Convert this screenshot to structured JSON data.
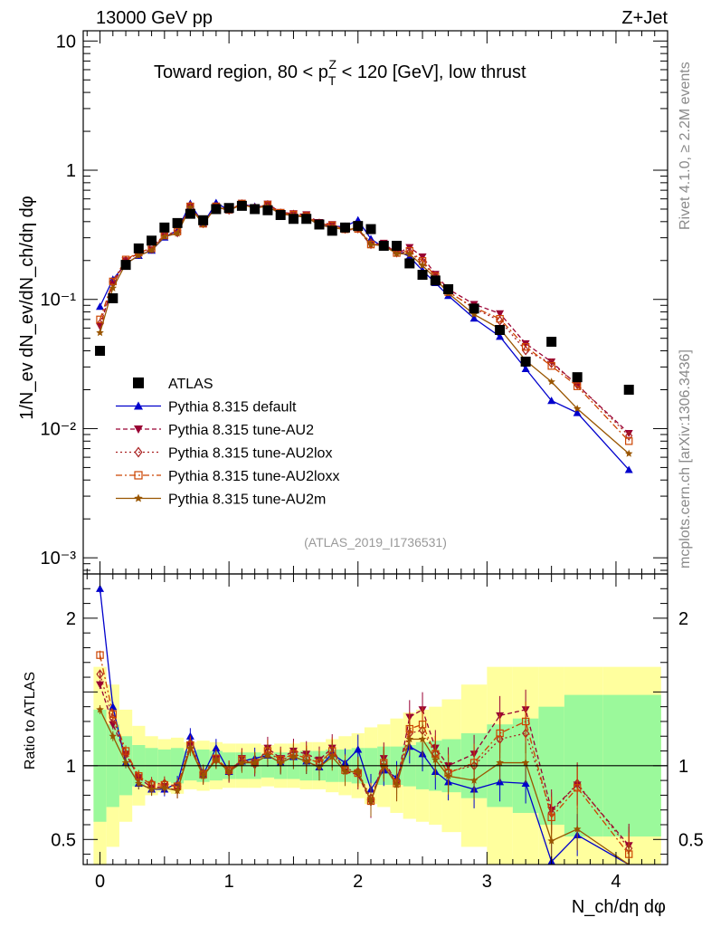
{
  "chart_data": {
    "type": "line",
    "header_left": "13000 GeV pp",
    "header_right": "Z+Jet",
    "title": {
      "main": "Toward region, 80 < p",
      "sub": "T",
      "sup": "Z",
      "rest": " < 120 [GeV], low thrust"
    },
    "ylabel_main": "1/N_ev dN_ev/dN_ch/dη dφ",
    "ylabel_ratio": "Ratio to ATLAS",
    "xlabel": "N_ch/dη dφ",
    "analysis_id": "(ATLAS_2019_I1736531)",
    "side_top": "Rivet 4.1.0, ≥ 2.2M events",
    "side_bottom": "mcplots.cern.ch [arXiv:1306.3436]",
    "xlim": [
      -0.13,
      4.4
    ],
    "ylim_main": [
      0.00075,
      12
    ],
    "ylim_ratio": [
      0.33,
      2.3
    ],
    "x_ticks": [
      "0",
      "1",
      "2",
      "3",
      "4"
    ],
    "y_ticks_main": [
      "10⁻³",
      "10⁻²",
      "10⁻¹",
      "1",
      "10"
    ],
    "y_ticks_ratio": [
      "0.5",
      "1",
      "2"
    ],
    "x": [
      0.0,
      0.1,
      0.2,
      0.3,
      0.4,
      0.5,
      0.6,
      0.7,
      0.8,
      0.9,
      1.0,
      1.1,
      1.2,
      1.3,
      1.4,
      1.5,
      1.6,
      1.7,
      1.8,
      1.9,
      2.0,
      2.1,
      2.2,
      2.3,
      2.4,
      2.5,
      2.6,
      2.7,
      2.9,
      3.1,
      3.3,
      3.5,
      3.7,
      4.1
    ],
    "data": {
      "name": "ATLAS",
      "values": [
        0.04,
        0.102,
        0.185,
        0.248,
        0.285,
        0.36,
        0.39,
        0.46,
        0.41,
        0.5,
        0.51,
        0.53,
        0.5,
        0.49,
        0.45,
        0.42,
        0.42,
        0.38,
        0.34,
        0.36,
        0.37,
        0.35,
        0.26,
        0.26,
        0.19,
        0.155,
        0.14,
        0.12,
        0.085,
        0.058,
        0.033,
        0.047,
        0.025,
        0.02
      ],
      "ratio_band_inner": [
        0.62,
        0.72,
        0.8,
        0.86,
        0.88,
        0.89,
        0.88,
        0.9,
        0.89,
        0.9,
        0.91,
        0.91,
        0.91,
        0.92,
        0.91,
        0.91,
        0.9,
        0.9,
        0.89,
        0.89,
        0.88,
        0.88,
        0.87,
        0.87,
        0.86,
        0.84,
        0.83,
        0.82,
        0.78,
        0.72,
        0.68,
        0.6,
        0.52,
        0.52
      ],
      "ratio_band_outer": [
        0.33,
        0.45,
        0.62,
        0.73,
        0.8,
        0.82,
        0.81,
        0.84,
        0.83,
        0.84,
        0.85,
        0.85,
        0.85,
        0.86,
        0.85,
        0.85,
        0.84,
        0.84,
        0.82,
        0.8,
        0.78,
        0.74,
        0.72,
        0.68,
        0.64,
        0.62,
        0.6,
        0.55,
        0.45,
        0.33,
        0.33,
        0.33,
        0.33,
        0.33
      ]
    },
    "series": [
      {
        "name": "Pythia 8.315 default",
        "color": "#0000cc",
        "dash": "",
        "marker": "triangle-up",
        "ratio": [
          2.2,
          1.4,
          1.02,
          0.88,
          0.84,
          0.84,
          0.88,
          1.2,
          0.94,
          1.12,
          0.96,
          1.03,
          1.05,
          1.07,
          1.02,
          1.06,
          1.03,
          0.99,
          1.08,
          1.02,
          1.11,
          0.84,
          0.97,
          0.92,
          1.13,
          1.08,
          0.96,
          0.89,
          0.84,
          0.89,
          0.88,
          0.35,
          0.53,
          0.24
        ]
      },
      {
        "name": "Pythia 8.315 tune-AU2",
        "color": "#990033",
        "dash": "5 3",
        "marker": "triangle-down",
        "ratio": [
          1.55,
          1.28,
          1.08,
          0.92,
          0.85,
          0.86,
          0.83,
          1.14,
          0.93,
          1.05,
          0.95,
          1.05,
          1.0,
          1.12,
          1.05,
          1.1,
          1.08,
          1.04,
          1.12,
          0.96,
          0.94,
          0.75,
          1.05,
          0.87,
          1.33,
          1.38,
          1.12,
          1.0,
          1.08,
          1.34,
          1.38,
          0.7,
          0.87,
          0.46
        ]
      },
      {
        "name": "Pythia 8.315 tune-AU2lox",
        "color": "#aa2222",
        "dash": "2 3",
        "marker": "diamond",
        "ratio": [
          1.62,
          1.32,
          1.08,
          0.92,
          0.88,
          0.88,
          0.86,
          1.15,
          0.95,
          1.04,
          0.97,
          1.03,
          1.02,
          1.1,
          1.03,
          1.08,
          1.05,
          1.02,
          1.08,
          0.98,
          0.96,
          0.78,
          1.02,
          0.89,
          1.22,
          1.24,
          1.08,
          0.96,
          1.0,
          1.18,
          1.22,
          0.68,
          0.88,
          0.44
        ]
      },
      {
        "name": "Pythia 8.315 tune-AU2loxx",
        "color": "#cc4400",
        "dash": "7 3 2 3",
        "marker": "square-open",
        "ratio": [
          1.75,
          1.35,
          1.1,
          0.93,
          0.87,
          0.87,
          0.86,
          1.14,
          0.94,
          1.05,
          0.97,
          1.04,
          1.02,
          1.1,
          1.04,
          1.08,
          1.05,
          1.02,
          1.1,
          0.97,
          0.95,
          0.76,
          1.02,
          0.88,
          1.25,
          1.28,
          1.08,
          0.95,
          1.02,
          1.22,
          1.3,
          0.65,
          0.85,
          0.4
        ]
      },
      {
        "name": "Pythia 8.315 tune-AU2m",
        "color": "#995500",
        "dash": "",
        "marker": "star",
        "ratio": [
          1.38,
          1.2,
          1.02,
          0.88,
          0.84,
          0.85,
          0.83,
          1.12,
          0.93,
          1.04,
          0.96,
          1.02,
          1.02,
          1.07,
          1.02,
          1.06,
          1.03,
          0.99,
          1.06,
          0.96,
          0.96,
          0.76,
          1.0,
          0.87,
          1.18,
          1.18,
          1.04,
          0.93,
          0.9,
          1.02,
          1.02,
          0.49,
          0.57,
          0.32
        ]
      }
    ]
  }
}
